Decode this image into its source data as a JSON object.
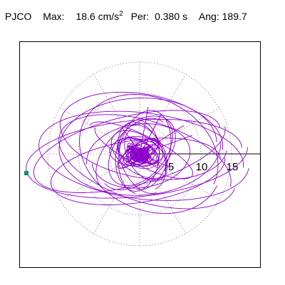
{
  "header": {
    "station": "PJCO",
    "max_label": "Max:",
    "max_value": "18.6",
    "max_unit": "cm/s",
    "max_unit_exp": "2",
    "per_label": "Per:",
    "per_value": "0.380 s",
    "ang_label": "Ang:",
    "ang_value": "189.7"
  },
  "plot": {
    "ring_labels": [
      "5",
      "10",
      "15"
    ],
    "trace_color": "#8a00c8",
    "grid_color": "#888888",
    "marker_color": "#109070",
    "marker_icon": "square-marker-icon"
  }
}
